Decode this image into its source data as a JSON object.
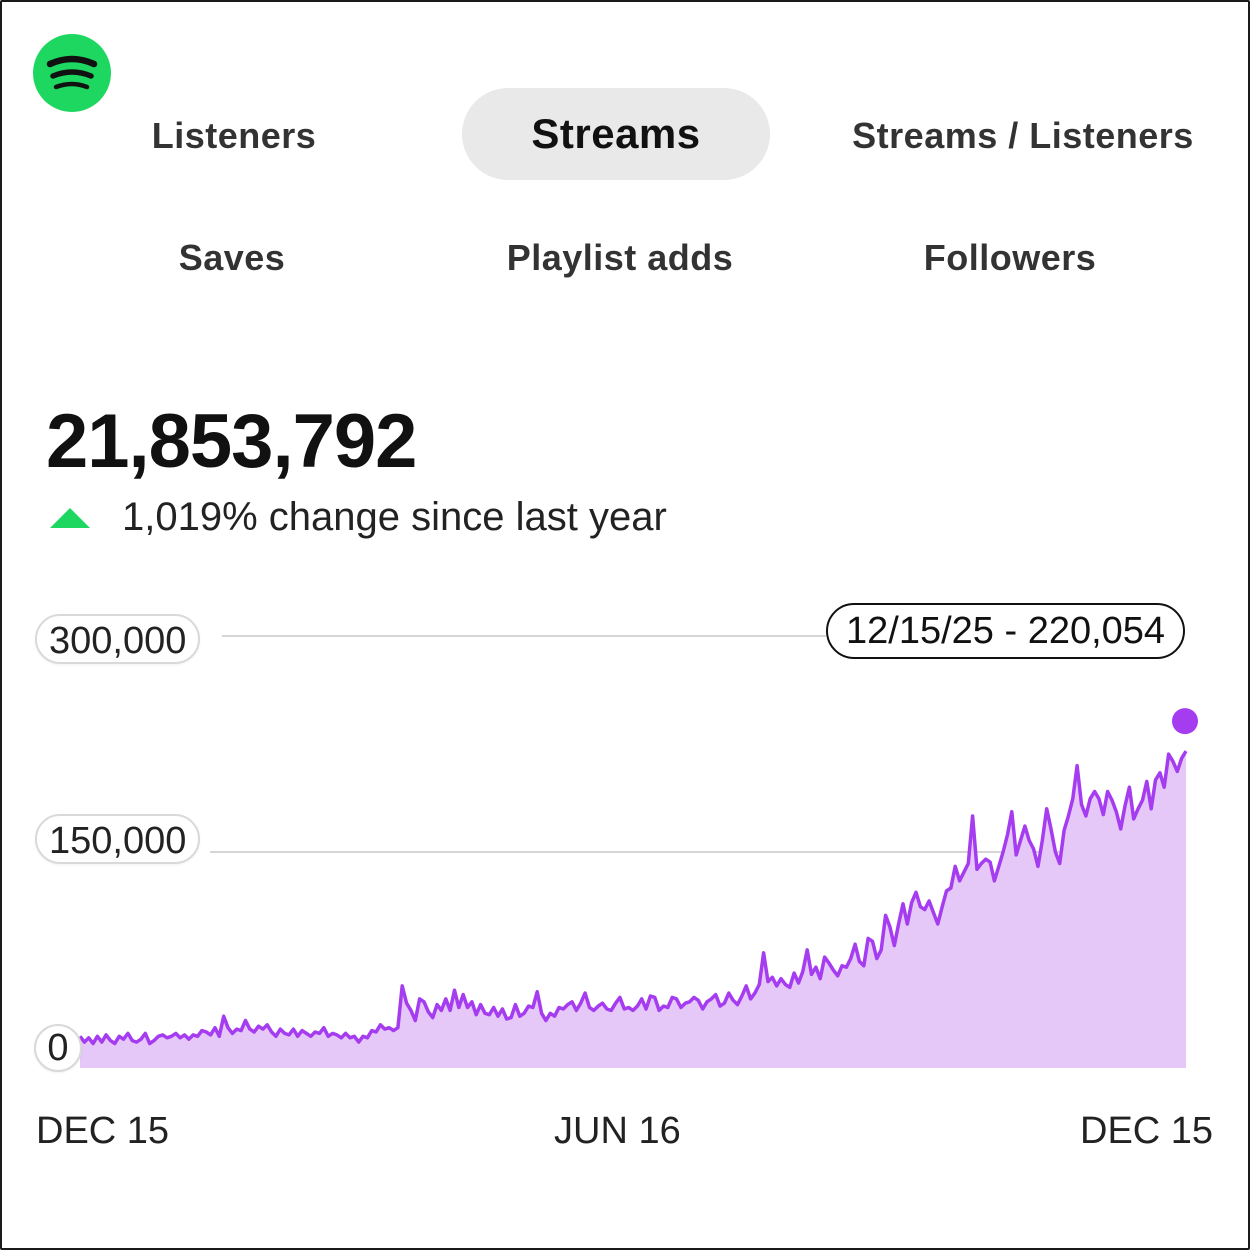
{
  "app": {
    "logo_icon": "spotify-logo",
    "brand_color": "#1ed760"
  },
  "tabs": [
    {
      "label": "Listeners",
      "active": false
    },
    {
      "label": "Streams",
      "active": true
    },
    {
      "label": "Streams / Listeners",
      "active": false
    },
    {
      "label": "Saves",
      "active": false
    },
    {
      "label": "Playlist adds",
      "active": false
    },
    {
      "label": "Followers",
      "active": false
    }
  ],
  "summary": {
    "total": "21,853,792",
    "change_text": "1,019% change since last year",
    "change_direction": "up",
    "change_icon": "triangle-up-icon",
    "change_color": "#1ed760"
  },
  "tooltip": {
    "text": "12/15/25 - 220,054"
  },
  "chart_data": {
    "type": "area",
    "series_color": "#a53cf0",
    "fill_color": "#e5c8f8",
    "y_ticks": [
      {
        "value": 0,
        "label": "0"
      },
      {
        "value": 150000,
        "label": "150,000"
      },
      {
        "value": 300000,
        "label": "300,000"
      }
    ],
    "x_ticks": [
      "DEC 15",
      "JUN 16",
      "DEC 15"
    ],
    "ylim": [
      0,
      300000
    ],
    "grid": true,
    "highlight": {
      "date": "12/15/25",
      "value": 220054
    },
    "values": [
      22000,
      18000,
      21000,
      17000,
      22000,
      18000,
      23000,
      19000,
      17000,
      22000,
      20000,
      24000,
      19000,
      18000,
      20000,
      24000,
      17000,
      19000,
      22000,
      23000,
      21000,
      22000,
      24000,
      21000,
      23000,
      20000,
      23000,
      22000,
      26000,
      25000,
      23000,
      28000,
      22000,
      36000,
      28000,
      24000,
      27000,
      26000,
      33000,
      27000,
      25000,
      29000,
      27000,
      30000,
      25000,
      22000,
      27000,
      24000,
      23000,
      27000,
      22000,
      26000,
      24000,
      22000,
      25000,
      24000,
      28000,
      22000,
      24000,
      23000,
      21000,
      24000,
      21000,
      22000,
      18000,
      22000,
      21000,
      26000,
      25000,
      30000,
      27000,
      28000,
      26000,
      28000,
      57000,
      45000,
      40000,
      33000,
      48000,
      46000,
      39000,
      35000,
      44000,
      40000,
      48000,
      40000,
      54000,
      42000,
      51000,
      42000,
      46000,
      37000,
      44000,
      38000,
      37000,
      42000,
      36000,
      41000,
      34000,
      35000,
      44000,
      36000,
      38000,
      43000,
      42000,
      53000,
      38000,
      33000,
      38000,
      36000,
      42000,
      41000,
      44000,
      46000,
      40000,
      45000,
      52000,
      42000,
      40000,
      43000,
      45000,
      41000,
      40000,
      45000,
      49000,
      41000,
      42000,
      40000,
      43000,
      48000,
      41000,
      50000,
      49000,
      40000,
      43000,
      42000,
      49000,
      48000,
      42000,
      45000,
      46000,
      49000,
      47000,
      41000,
      46000,
      48000,
      51000,
      43000,
      45000,
      52000,
      47000,
      44000,
      50000,
      57000,
      48000,
      52000,
      58000,
      80000,
      60000,
      63000,
      57000,
      62000,
      58000,
      56000,
      66000,
      59000,
      67000,
      82000,
      65000,
      70000,
      62000,
      77000,
      73000,
      68000,
      64000,
      71000,
      70000,
      76000,
      86000,
      74000,
      71000,
      90000,
      88000,
      76000,
      82000,
      106000,
      98000,
      85000,
      100000,
      114000,
      100000,
      115000,
      122000,
      112000,
      110000,
      116000,
      108000,
      100000,
      112000,
      123000,
      125000,
      140000,
      130000,
      136000,
      142000,
      175000,
      138000,
      142000,
      145000,
      143000,
      130000,
      140000,
      150000,
      162000,
      178000,
      148000,
      158000,
      168000,
      158000,
      152000,
      140000,
      158000,
      180000,
      166000,
      150000,
      142000,
      165000,
      175000,
      187000,
      210000,
      183000,
      175000,
      187000,
      192000,
      187000,
      176000,
      192000,
      186000,
      178000,
      166000,
      182000,
      195000,
      173000,
      180000,
      186000,
      199000,
      180000,
      200000,
      205000,
      195000,
      218000,
      213000,
      206000,
      215000,
      220054
    ]
  }
}
